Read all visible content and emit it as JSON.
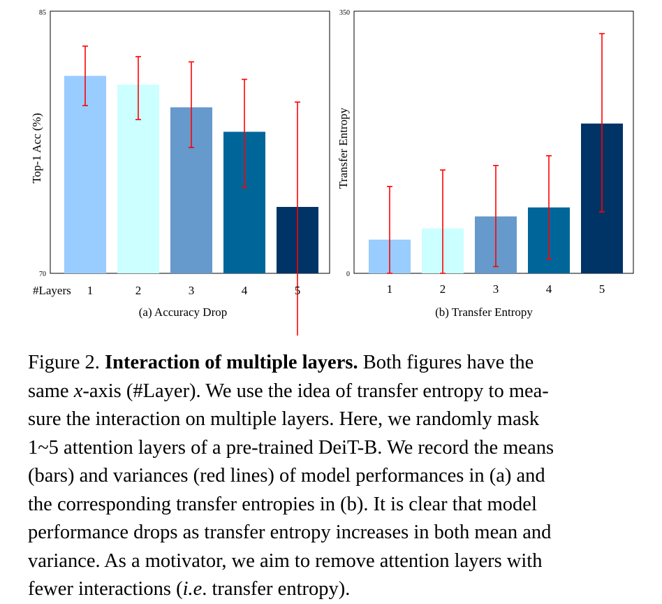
{
  "chart_data": [
    {
      "type": "bar",
      "categories": [
        "1",
        "2",
        "3",
        "4",
        "5"
      ],
      "values": [
        81.3,
        80.8,
        79.5,
        78.1,
        73.8
      ],
      "error_low": [
        79.6,
        78.8,
        77.2,
        74.9,
        66.0
      ],
      "error_high": [
        83.0,
        82.4,
        82.1,
        81.1,
        79.8
      ],
      "colors": [
        "#99ccff",
        "#ccffff",
        "#6699cc",
        "#006699",
        "#003366"
      ],
      "error_color": "#ff0000",
      "ylabel": "Top-1 Acc (%)",
      "xlabel": "#Layers",
      "yticks": [
        "85",
        "70"
      ],
      "ylim": [
        70,
        85
      ],
      "subcaption": "(a) Accuracy Drop"
    },
    {
      "type": "bar",
      "categories": [
        "1",
        "2",
        "3",
        "4",
        "5"
      ],
      "values": [
        45,
        60,
        76,
        88,
        200
      ],
      "error_low": [
        0,
        0,
        9,
        19,
        82
      ],
      "error_high": [
        116,
        138,
        144,
        157,
        320
      ],
      "colors": [
        "#99ccff",
        "#ccffff",
        "#6699cc",
        "#006699",
        "#003366"
      ],
      "error_color": "#ff0000",
      "ylabel": "Transfer Entropy",
      "xlabel": "",
      "yticks": [
        "350",
        "0"
      ],
      "ylim": [
        0,
        350
      ],
      "subcaption": "(b) Transfer Entropy"
    }
  ],
  "caption": {
    "lines": [
      "Figure 2. <b>Interaction of multiple layers.</b> Both figures have the",
      "same <i>x</i>-axis (#Layer). We use the idea of transfer entropy to mea-",
      "sure the interaction on multiple layers. Here, we randomly mask",
      "1~5 attention layers of a pre-trained DeiT-B. We record the means",
      "(bars) and variances (red lines) of model performances in (a) and",
      "the corresponding transfer entropies in (b). It is clear that model",
      "performance drops as transfer entropy increases in both mean and",
      "variance. As a motivator, we aim to remove attention layers with",
      "fewer interactions (<i>i.e</i>. transfer entropy)."
    ]
  }
}
